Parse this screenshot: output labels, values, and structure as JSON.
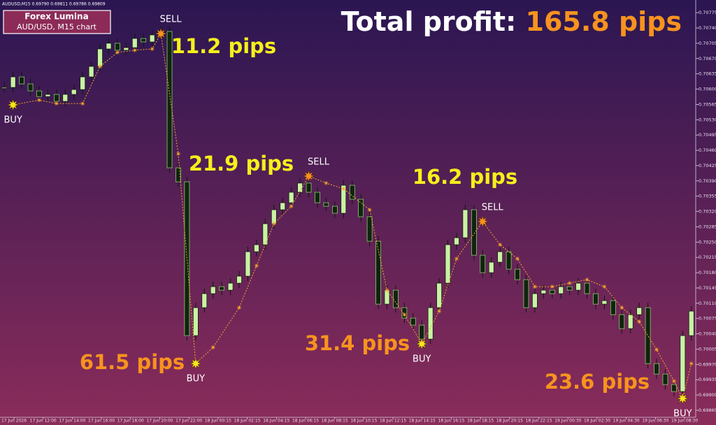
{
  "chart_data": {
    "type": "candlestick",
    "title": "Forex Lumina",
    "subtitle": "AUD/USD, M15 chart",
    "symbol_info": "AUDUSD,M15 0.69790 0.69811 0.69786 0.69809",
    "total_profit_label": "Total profit:",
    "total_profit_value": "165.8 pips",
    "up_color": "#c9f2a4",
    "down_color": "#10240f",
    "signal_color": "#f7a72b",
    "close": [
      0.70604,
      0.70628,
      0.70612,
      0.70596,
      0.70583,
      0.70588,
      0.70572,
      0.70588,
      0.70599,
      0.70628,
      0.70652,
      0.70692,
      0.70705,
      0.70689,
      0.70695,
      0.70716,
      0.70708,
      0.70724,
      0.70732,
      0.7042,
      0.70388,
      0.70036,
      0.701,
      0.70132,
      0.70148,
      0.7014,
      0.70156,
      0.70172,
      0.70228,
      0.70244,
      0.70292,
      0.70324,
      0.7034,
      0.70364,
      0.70385,
      0.70364,
      0.7034,
      0.70332,
      0.70316,
      0.7038,
      0.70348,
      0.70308,
      0.70252,
      0.70108,
      0.7014,
      0.701,
      0.70076,
      0.7006,
      0.70028,
      0.701,
      0.70156,
      0.70244,
      0.7026,
      0.70324,
      0.7022,
      0.7018,
      0.70204,
      0.70228,
      0.70188,
      0.70164,
      0.701,
      0.70132,
      0.7014,
      0.70132,
      0.70148,
      0.7014,
      0.70156,
      0.70132,
      0.70108,
      0.70116,
      0.70084,
      0.70052,
      0.70084,
      0.701,
      0.69972,
      0.69948,
      0.69924,
      0.69908,
      0.70036,
      0.70092
    ],
    "signal": {
      "x": [
        1,
        4,
        6,
        9,
        11,
        13,
        15,
        17,
        18,
        20,
        22,
        24,
        27,
        29,
        31,
        33,
        35,
        37,
        39,
        42,
        44,
        46,
        48,
        50,
        52,
        55,
        57,
        59,
        61,
        63,
        65,
        67,
        69,
        71,
        73,
        75,
        77,
        78,
        79
      ],
      "values": [
        0.70564,
        0.70575,
        0.70567,
        0.70567,
        0.70652,
        0.70684,
        0.70689,
        0.70692,
        0.70727,
        0.70452,
        0.69972,
        0.70009,
        0.701,
        0.70196,
        0.70292,
        0.70332,
        0.70401,
        0.70385,
        0.70372,
        0.70324,
        0.7014,
        0.70084,
        0.70017,
        0.70092,
        0.70212,
        0.70297,
        0.70244,
        0.70212,
        0.70148,
        0.70148,
        0.70156,
        0.70164,
        0.70148,
        0.701,
        0.70068,
        0.70004,
        0.69932,
        0.69892,
        0.69972
      ]
    },
    "signals": [
      "BUY",
      "SELL",
      "BUY",
      "SELL",
      "BUY",
      "SELL",
      "BUY"
    ],
    "annotations": [
      {
        "text": "11.2 pips",
        "color": "#f5ef1c"
      },
      {
        "text": "21.9 pips",
        "color": "#f5ef1c"
      },
      {
        "text": "61.5 pips",
        "color": "#f7931e"
      },
      {
        "text": "31.4 pips",
        "color": "#f7931e"
      },
      {
        "text": "16.2 pips",
        "color": "#f5ef1c"
      },
      {
        "text": "23.6 pips",
        "color": "#f7931e"
      }
    ],
    "ylim": [
      0.69849,
      0.70804
    ],
    "yticks": [
      0.70775,
      {
        "value": 0.7074,
        "label": "0.70740"
      },
      0.70705,
      {
        "value": 0.7067,
        "label": "0.70670"
      },
      0.70635,
      {
        "value": 0.706,
        "label": "0.70600"
      },
      0.70565,
      {
        "value": 0.7053,
        "label": "0.70530"
      },
      0.70495,
      {
        "value": 0.7046,
        "label": "0.70460"
      },
      0.70425,
      {
        "value": 0.7039,
        "label": "0.70390"
      },
      0.70355,
      {
        "value": 0.7032,
        "label": "0.70320"
      },
      0.70285,
      {
        "value": 0.7025,
        "label": "0.70250"
      },
      0.70215,
      {
        "value": 0.7018,
        "label": "0.70180"
      },
      0.70145,
      {
        "value": 0.7011,
        "label": "0.70110"
      },
      0.70075,
      {
        "value": 0.7004,
        "label": "0.70040"
      },
      0.70005,
      {
        "value": 0.6997,
        "label": "0.69970"
      },
      0.69935,
      {
        "value": 0.699,
        "label": "0.69900"
      },
      0.69865
    ],
    "x_labels": [
      "17 Jun 2026",
      "17 Jun 12:00",
      "17 Jun 14:00",
      "17 Jun 16:00",
      "17 Jun 18:00",
      "17 Jun 20:00",
      "17 Jun 22:00",
      "18 Jun 00:15",
      "18 Jun 02:15",
      "18 Jun 04:15",
      "18 Jun 06:15",
      "18 Jun 08:15",
      "18 Jun 10:15",
      "18 Jun 12:15",
      "18 Jun 14:15",
      "18 Jun 16:15",
      "18 Jun 18:15",
      "18 Jun 20:15",
      "18 Jun 22:15",
      "19 Jun 00:30",
      "19 Jun 02:30",
      "19 Jun 04:30",
      "19 Jun 06:30",
      "19 Jun 08:30"
    ]
  }
}
